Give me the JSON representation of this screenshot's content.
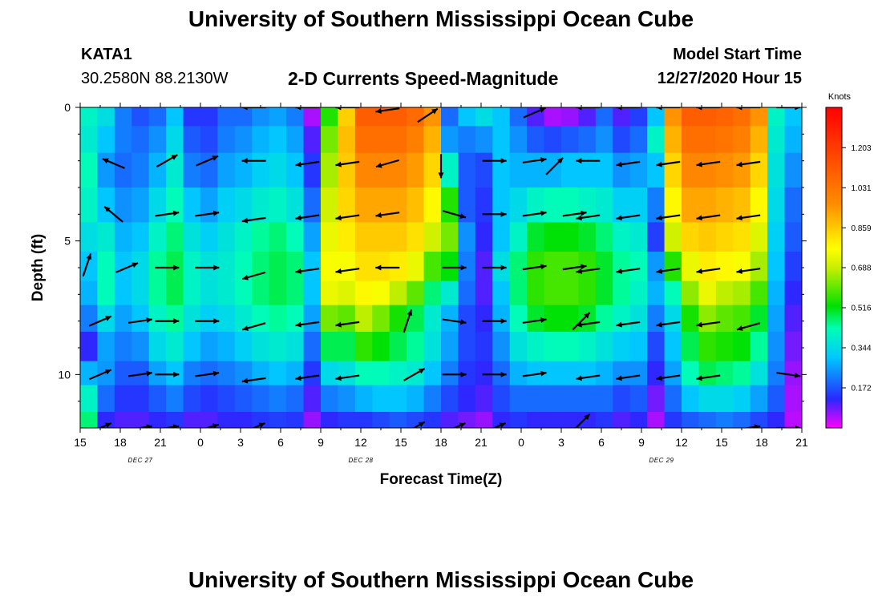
{
  "header": {
    "title": "University of Southern Mississippi Ocean Cube",
    "station": "KATA1",
    "coords": "30.2580N 88.2130W",
    "subtitle": "2-D Currents Speed-Magnitude",
    "model_start_label": "Model Start Time",
    "model_start_value": "12/27/2020 Hour 15"
  },
  "footer": {
    "title": "University of Southern Mississippi Ocean Cube"
  },
  "chart_data": {
    "type": "heatmap",
    "title": "2-D Currents Speed-Magnitude",
    "xlabel": "Forecast Time(Z)",
    "ylabel": "Depth (ft)",
    "xlim": [
      0,
      54
    ],
    "ylim": [
      0,
      12
    ],
    "x_ticks": [
      "15",
      "18",
      "21",
      "0",
      "3",
      "6",
      "9",
      "12",
      "15",
      "18",
      "21",
      "0",
      "3",
      "6",
      "9",
      "12",
      "15",
      "18",
      "21"
    ],
    "y_ticks": [
      0,
      5,
      10
    ],
    "date_labels": [
      {
        "text": "DEC 27",
        "hour": 4.5
      },
      {
        "text": "DEC 28",
        "hour": 21
      },
      {
        "text": "DEC 29",
        "hour": 43.5
      }
    ],
    "colorbar": {
      "label": "Knots",
      "ticks": [
        "1.203",
        "1.031",
        "0.859",
        "0.688",
        "0.516",
        "0.344",
        "0.172"
      ],
      "range": [
        0,
        1.376
      ]
    },
    "depth_levels": [
      0.2,
      1.2,
      2.2,
      3.8,
      4.8,
      6.0,
      7.0,
      7.8,
      9.0,
      10.0,
      10.8,
      12.0
    ],
    "hour_speeds": [
      [
        0.4,
        0.38,
        0.42,
        0.4,
        0.35,
        0.3,
        0.28,
        0.22,
        0.12,
        0.28,
        0.4,
        0.46
      ],
      [
        0.35,
        0.3,
        0.25,
        0.3,
        0.38,
        0.42,
        0.42,
        0.34,
        0.26,
        0.25,
        0.2,
        0.12
      ],
      [
        0.22,
        0.22,
        0.2,
        0.24,
        0.28,
        0.3,
        0.3,
        0.26,
        0.22,
        0.18,
        0.14,
        0.1
      ],
      [
        0.17,
        0.2,
        0.22,
        0.26,
        0.3,
        0.34,
        0.34,
        0.3,
        0.24,
        0.18,
        0.14,
        0.1
      ],
      [
        0.2,
        0.24,
        0.28,
        0.34,
        0.4,
        0.44,
        0.44,
        0.4,
        0.34,
        0.26,
        0.18,
        0.12
      ],
      [
        0.3,
        0.34,
        0.38,
        0.42,
        0.46,
        0.48,
        0.48,
        0.44,
        0.38,
        0.3,
        0.22,
        0.14
      ],
      [
        0.14,
        0.18,
        0.22,
        0.3,
        0.36,
        0.4,
        0.4,
        0.36,
        0.3,
        0.22,
        0.16,
        0.1
      ],
      [
        0.14,
        0.16,
        0.2,
        0.26,
        0.32,
        0.36,
        0.36,
        0.32,
        0.26,
        0.2,
        0.14,
        0.1
      ],
      [
        0.2,
        0.22,
        0.26,
        0.32,
        0.36,
        0.38,
        0.38,
        0.34,
        0.28,
        0.22,
        0.16,
        0.12
      ],
      [
        0.2,
        0.24,
        0.28,
        0.34,
        0.4,
        0.42,
        0.42,
        0.38,
        0.32,
        0.24,
        0.18,
        0.12
      ],
      [
        0.24,
        0.28,
        0.32,
        0.38,
        0.44,
        0.46,
        0.46,
        0.42,
        0.36,
        0.28,
        0.2,
        0.14
      ],
      [
        0.26,
        0.3,
        0.34,
        0.4,
        0.46,
        0.48,
        0.48,
        0.44,
        0.38,
        0.3,
        0.22,
        0.15
      ],
      [
        0.22,
        0.26,
        0.3,
        0.36,
        0.42,
        0.46,
        0.46,
        0.42,
        0.36,
        0.28,
        0.2,
        0.14
      ],
      [
        0.05,
        0.1,
        0.14,
        0.2,
        0.26,
        0.3,
        0.3,
        0.26,
        0.2,
        0.14,
        0.1,
        0.06
      ],
      [
        0.55,
        0.62,
        0.66,
        0.7,
        0.74,
        0.76,
        0.74,
        0.62,
        0.48,
        0.34,
        0.22,
        0.12
      ],
      [
        0.85,
        0.88,
        0.86,
        0.84,
        0.8,
        0.76,
        0.72,
        0.6,
        0.48,
        0.36,
        0.24,
        0.14
      ],
      [
        1.1,
        1.05,
        0.98,
        0.92,
        0.86,
        0.82,
        0.78,
        0.68,
        0.56,
        0.42,
        0.28,
        0.14
      ],
      [
        1.1,
        1.05,
        0.98,
        0.92,
        0.86,
        0.82,
        0.76,
        0.62,
        0.52,
        0.42,
        0.3,
        0.16
      ],
      [
        1.1,
        1.05,
        0.98,
        0.92,
        0.86,
        0.8,
        0.68,
        0.54,
        0.48,
        0.4,
        0.3,
        0.18
      ],
      [
        1.06,
        1.0,
        0.94,
        0.88,
        0.82,
        0.74,
        0.6,
        0.48,
        0.44,
        0.38,
        0.28,
        0.16
      ],
      [
        0.95,
        0.9,
        0.84,
        0.78,
        0.7,
        0.58,
        0.46,
        0.38,
        0.36,
        0.3,
        0.22,
        0.14
      ],
      [
        0.2,
        0.25,
        0.4,
        0.55,
        0.62,
        0.52,
        0.38,
        0.28,
        0.26,
        0.22,
        0.16,
        0.1
      ],
      [
        0.3,
        0.22,
        0.18,
        0.18,
        0.24,
        0.22,
        0.2,
        0.16,
        0.16,
        0.14,
        0.12,
        0.08
      ],
      [
        0.35,
        0.24,
        0.16,
        0.14,
        0.12,
        0.1,
        0.1,
        0.12,
        0.14,
        0.12,
        0.1,
        0.06
      ],
      [
        0.3,
        0.3,
        0.3,
        0.3,
        0.3,
        0.35,
        0.3,
        0.28,
        0.24,
        0.2,
        0.16,
        0.12
      ],
      [
        0.2,
        0.24,
        0.28,
        0.34,
        0.4,
        0.46,
        0.46,
        0.42,
        0.36,
        0.28,
        0.2,
        0.14
      ],
      [
        0.1,
        0.18,
        0.28,
        0.4,
        0.5,
        0.56,
        0.56,
        0.5,
        0.4,
        0.3,
        0.2,
        0.12
      ],
      [
        0.05,
        0.16,
        0.28,
        0.42,
        0.52,
        0.58,
        0.58,
        0.52,
        0.42,
        0.3,
        0.2,
        0.12
      ],
      [
        0.06,
        0.18,
        0.3,
        0.42,
        0.52,
        0.58,
        0.58,
        0.52,
        0.42,
        0.3,
        0.2,
        0.12
      ],
      [
        0.1,
        0.2,
        0.3,
        0.4,
        0.5,
        0.56,
        0.56,
        0.5,
        0.4,
        0.3,
        0.2,
        0.12
      ],
      [
        0.2,
        0.24,
        0.3,
        0.38,
        0.46,
        0.5,
        0.5,
        0.44,
        0.36,
        0.28,
        0.2,
        0.14
      ],
      [
        0.1,
        0.16,
        0.24,
        0.32,
        0.4,
        0.44,
        0.44,
        0.4,
        0.32,
        0.24,
        0.16,
        0.1
      ],
      [
        0.15,
        0.2,
        0.26,
        0.32,
        0.38,
        0.42,
        0.4,
        0.36,
        0.3,
        0.24,
        0.18,
        0.12
      ],
      [
        0.3,
        0.4,
        0.3,
        0.22,
        0.15,
        0.25,
        0.28,
        0.22,
        0.16,
        0.12,
        0.08,
        0.05
      ],
      [
        0.95,
        0.9,
        0.84,
        0.78,
        0.7,
        0.55,
        0.42,
        0.34,
        0.3,
        0.26,
        0.2,
        0.14
      ],
      [
        1.1,
        1.05,
        0.98,
        0.92,
        0.84,
        0.74,
        0.64,
        0.54,
        0.48,
        0.42,
        0.3,
        0.18
      ],
      [
        1.1,
        1.05,
        0.98,
        0.92,
        0.86,
        0.8,
        0.74,
        0.64,
        0.56,
        0.48,
        0.34,
        0.2
      ],
      [
        1.08,
        1.03,
        0.96,
        0.9,
        0.84,
        0.78,
        0.68,
        0.6,
        0.54,
        0.46,
        0.34,
        0.22
      ],
      [
        1.05,
        1.0,
        0.94,
        0.88,
        0.82,
        0.76,
        0.66,
        0.58,
        0.52,
        0.44,
        0.32,
        0.2
      ],
      [
        0.95,
        0.9,
        0.84,
        0.78,
        0.72,
        0.66,
        0.58,
        0.5,
        0.44,
        0.36,
        0.26,
        0.16
      ],
      [
        0.4,
        0.38,
        0.36,
        0.34,
        0.32,
        0.3,
        0.28,
        0.26,
        0.24,
        0.22,
        0.18,
        0.12
      ],
      [
        0.3,
        0.28,
        0.24,
        0.2,
        0.18,
        0.15,
        0.12,
        0.1,
        0.08,
        0.06,
        0.05,
        0.04
      ]
    ],
    "vectors": [
      {
        "t": 0.5,
        "d": 5.9,
        "dx": 1,
        "dy": -3
      },
      {
        "t": 1.5,
        "d": 8,
        "dx": 7,
        "dy": -3
      },
      {
        "t": 1.5,
        "d": 10,
        "dx": 7,
        "dy": -3
      },
      {
        "t": 1.5,
        "d": 12,
        "dx": 7,
        "dy": -3
      },
      {
        "t": 2.5,
        "d": 2.1,
        "dx": -7,
        "dy": -3
      },
      {
        "t": 2.5,
        "d": 4,
        "dx": -6,
        "dy": -5
      },
      {
        "t": 3.5,
        "d": 6,
        "dx": 7,
        "dy": -3
      },
      {
        "t": 4.5,
        "d": 8,
        "dx": 7,
        "dy": -1
      },
      {
        "t": 4.5,
        "d": 10,
        "dx": 7,
        "dy": -1
      },
      {
        "t": 4.5,
        "d": 12,
        "dx": 7,
        "dy": -1
      },
      {
        "t": 6.5,
        "d": 2,
        "dx": 7,
        "dy": -4
      },
      {
        "t": 6.5,
        "d": 4,
        "dx": 7,
        "dy": -1
      },
      {
        "t": 6.5,
        "d": 6,
        "dx": 7,
        "dy": 0
      },
      {
        "t": 6.5,
        "d": 8,
        "dx": 7,
        "dy": 0
      },
      {
        "t": 6.5,
        "d": 10,
        "dx": 7,
        "dy": 0
      },
      {
        "t": 6.5,
        "d": 12,
        "dx": 7,
        "dy": -1
      },
      {
        "t": 9.5,
        "d": 2,
        "dx": 7,
        "dy": -3
      },
      {
        "t": 9.5,
        "d": 4,
        "dx": 7,
        "dy": -1
      },
      {
        "t": 9.5,
        "d": 6,
        "dx": 7,
        "dy": 0
      },
      {
        "t": 9.5,
        "d": 8,
        "dx": 7,
        "dy": 0
      },
      {
        "t": 9.5,
        "d": 10,
        "dx": 7,
        "dy": -1
      },
      {
        "t": 9.5,
        "d": 12,
        "dx": 7,
        "dy": -2
      },
      {
        "t": 13,
        "d": 0,
        "dx": -7,
        "dy": 0
      },
      {
        "t": 13,
        "d": 2,
        "dx": -7,
        "dy": 0
      },
      {
        "t": 13,
        "d": 4.2,
        "dx": -7,
        "dy": 1
      },
      {
        "t": 13,
        "d": 6.3,
        "dx": -7,
        "dy": 2
      },
      {
        "t": 13,
        "d": 8.2,
        "dx": -7,
        "dy": 2
      },
      {
        "t": 13,
        "d": 10.2,
        "dx": -7,
        "dy": 1
      },
      {
        "t": 13,
        "d": 12,
        "dx": 7,
        "dy": -3
      },
      {
        "t": 17,
        "d": 0,
        "dx": -7,
        "dy": 0
      },
      {
        "t": 17,
        "d": 2.1,
        "dx": -7,
        "dy": 1
      },
      {
        "t": 17,
        "d": 4.1,
        "dx": -7,
        "dy": 1
      },
      {
        "t": 17,
        "d": 6.1,
        "dx": -7,
        "dy": 1
      },
      {
        "t": 17,
        "d": 8.1,
        "dx": -7,
        "dy": 1
      },
      {
        "t": 17,
        "d": 10.1,
        "dx": -7,
        "dy": 1
      },
      {
        "t": 20,
        "d": 0,
        "dx": -7,
        "dy": 0
      },
      {
        "t": 20,
        "d": 2.1,
        "dx": -7,
        "dy": 1
      },
      {
        "t": 20,
        "d": 4.1,
        "dx": -7,
        "dy": 1
      },
      {
        "t": 20,
        "d": 6.1,
        "dx": -7,
        "dy": 1
      },
      {
        "t": 20,
        "d": 8.1,
        "dx": -7,
        "dy": 1
      },
      {
        "t": 20,
        "d": 10.1,
        "dx": -7,
        "dy": 1
      },
      {
        "t": 23,
        "d": 0.1,
        "dx": -7,
        "dy": 1
      },
      {
        "t": 23,
        "d": 2.1,
        "dx": -7,
        "dy": 2
      },
      {
        "t": 23,
        "d": 4,
        "dx": -7,
        "dy": 1
      },
      {
        "t": 23,
        "d": 6,
        "dx": -7,
        "dy": 0
      },
      {
        "t": 24.5,
        "d": 8,
        "dx": 2,
        "dy": -6
      },
      {
        "t": 25,
        "d": 10,
        "dx": 7,
        "dy": -4
      },
      {
        "t": 25,
        "d": 12,
        "dx": 7,
        "dy": -4
      },
      {
        "t": 26,
        "d": 0.3,
        "dx": 6,
        "dy": -4
      },
      {
        "t": 27,
        "d": 2.2,
        "dx": 0,
        "dy": 7
      },
      {
        "t": 28,
        "d": 4,
        "dx": 7,
        "dy": 2
      },
      {
        "t": 28,
        "d": 6,
        "dx": 7,
        "dy": 0
      },
      {
        "t": 28,
        "d": 8,
        "dx": 7,
        "dy": 1
      },
      {
        "t": 28,
        "d": 10,
        "dx": 7,
        "dy": 0
      },
      {
        "t": 28,
        "d": 12,
        "dx": 7,
        "dy": -3
      },
      {
        "t": 31,
        "d": 2,
        "dx": 7,
        "dy": 0
      },
      {
        "t": 31,
        "d": 4,
        "dx": 7,
        "dy": 0
      },
      {
        "t": 31,
        "d": 6,
        "dx": 7,
        "dy": 0
      },
      {
        "t": 31,
        "d": 8,
        "dx": 7,
        "dy": 0
      },
      {
        "t": 31,
        "d": 10,
        "dx": 7,
        "dy": 0
      },
      {
        "t": 31,
        "d": 12,
        "dx": 7,
        "dy": -3
      },
      {
        "t": 34,
        "d": 0.2,
        "dx": 7,
        "dy": -3
      },
      {
        "t": 34,
        "d": 2,
        "dx": 7,
        "dy": -1
      },
      {
        "t": 34,
        "d": 4,
        "dx": 7,
        "dy": -1
      },
      {
        "t": 34,
        "d": 6,
        "dx": 7,
        "dy": -1
      },
      {
        "t": 34,
        "d": 8,
        "dx": 7,
        "dy": -1
      },
      {
        "t": 34,
        "d": 10,
        "dx": 7,
        "dy": -1
      },
      {
        "t": 35.5,
        "d": 2.2,
        "dx": 5,
        "dy": -5
      },
      {
        "t": 37,
        "d": 4,
        "dx": 7,
        "dy": -1
      },
      {
        "t": 37,
        "d": 6,
        "dx": 7,
        "dy": -1
      },
      {
        "t": 37.5,
        "d": 8,
        "dx": 2,
        "dy": -2
      },
      {
        "t": 37.5,
        "d": 11.8,
        "dx": 1,
        "dy": -1
      },
      {
        "t": 38,
        "d": 0,
        "dx": -7,
        "dy": 0
      },
      {
        "t": 38,
        "d": 2,
        "dx": -7,
        "dy": 0
      },
      {
        "t": 38,
        "d": 4.1,
        "dx": -7,
        "dy": 1
      },
      {
        "t": 38,
        "d": 6.1,
        "dx": -7,
        "dy": 1
      },
      {
        "t": 38,
        "d": 8.1,
        "dx": -7,
        "dy": 1
      },
      {
        "t": 38,
        "d": 10.1,
        "dx": -7,
        "dy": 1
      },
      {
        "t": 41,
        "d": 0,
        "dx": -7,
        "dy": 0
      },
      {
        "t": 41,
        "d": 2.1,
        "dx": -7,
        "dy": 1
      },
      {
        "t": 41,
        "d": 4.1,
        "dx": -7,
        "dy": 1
      },
      {
        "t": 41,
        "d": 6.1,
        "dx": -7,
        "dy": 1
      },
      {
        "t": 41,
        "d": 8.1,
        "dx": -7,
        "dy": 1
      },
      {
        "t": 41,
        "d": 10.1,
        "dx": -7,
        "dy": 1
      },
      {
        "t": 44,
        "d": 0,
        "dx": -7,
        "dy": 0
      },
      {
        "t": 44,
        "d": 2.1,
        "dx": -7,
        "dy": 1
      },
      {
        "t": 44,
        "d": 4.1,
        "dx": -7,
        "dy": 1
      },
      {
        "t": 44,
        "d": 6.1,
        "dx": -7,
        "dy": 1
      },
      {
        "t": 44,
        "d": 8.1,
        "dx": -7,
        "dy": 1
      },
      {
        "t": 44,
        "d": 10.1,
        "dx": -7,
        "dy": 1
      },
      {
        "t": 47,
        "d": 0,
        "dx": -7,
        "dy": 0
      },
      {
        "t": 47,
        "d": 2.1,
        "dx": -7,
        "dy": 1
      },
      {
        "t": 47,
        "d": 4.1,
        "dx": -7,
        "dy": 1
      },
      {
        "t": 47,
        "d": 6.1,
        "dx": -7,
        "dy": 1
      },
      {
        "t": 47,
        "d": 8.1,
        "dx": -7,
        "dy": 1
      },
      {
        "t": 47,
        "d": 10.1,
        "dx": -7,
        "dy": 1
      },
      {
        "t": 50,
        "d": 0,
        "dx": -7,
        "dy": 0
      },
      {
        "t": 50,
        "d": 2.1,
        "dx": -7,
        "dy": 1
      },
      {
        "t": 50,
        "d": 4.1,
        "dx": -7,
        "dy": 1
      },
      {
        "t": 50,
        "d": 6.1,
        "dx": -7,
        "dy": 1
      },
      {
        "t": 50,
        "d": 8.2,
        "dx": -7,
        "dy": 2
      },
      {
        "t": 50,
        "d": 12,
        "dx": 7,
        "dy": -1
      },
      {
        "t": 53,
        "d": 0,
        "dx": 7,
        "dy": 0
      },
      {
        "t": 53,
        "d": 10,
        "dx": 7,
        "dy": 1
      },
      {
        "t": 53,
        "d": 12,
        "dx": 7,
        "dy": 0
      }
    ]
  }
}
